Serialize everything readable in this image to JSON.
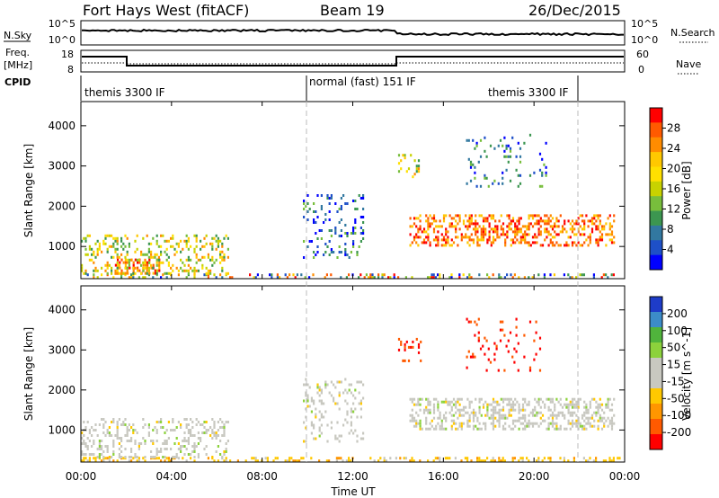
{
  "header": {
    "site": "Fort Hays West (fitACF)",
    "beam": "Beam 19",
    "date": "26/Dec/2015"
  },
  "top_panels": {
    "nsky_label": "N.Sky",
    "nsky_ticks": [
      "10^5",
      "10^0"
    ],
    "nsearch_label": "N.Search",
    "nsearch_ticks": [
      "10^5",
      "10^0"
    ],
    "freq_label": "Freq.",
    "freq_unit": "[MHz]",
    "freq_ticks": [
      "18",
      "8"
    ],
    "nave_label": "Nave",
    "nave_ticks": [
      "60",
      "0"
    ],
    "cpid_label": "CPID",
    "cpid_segments": [
      {
        "label": "themis 3300 IF",
        "start_hr": 0,
        "end_hr": 10
      },
      {
        "label": "normal (fast) 151 IF",
        "start_hr": 10,
        "end_hr": 22
      },
      {
        "label": "themis 3300 IF",
        "start_hr": 22,
        "end_hr": 24
      }
    ]
  },
  "x_axis": {
    "label": "Time UT",
    "ticks": [
      "00:00",
      "04:00",
      "08:00",
      "12:00",
      "16:00",
      "20:00",
      "00:00"
    ]
  },
  "y_axis": {
    "label": "Slant Range [km]",
    "ticks": [
      "1000",
      "2000",
      "3000",
      "4000"
    ]
  },
  "power_colorbar": {
    "label": "Power [dB]",
    "ticks": [
      "28",
      "24",
      "20",
      "16",
      "12",
      "8",
      "4"
    ],
    "colors": [
      "#ff0000",
      "#ff5a00",
      "#ff8c00",
      "#ffc800",
      "#ffe000",
      "#c8d200",
      "#78be3c",
      "#3c9650",
      "#3278a0",
      "#1e50c8",
      "#0000ff"
    ]
  },
  "velocity_colorbar": {
    "label": "Velocity [m s^-1]",
    "ticks": [
      "200",
      "100",
      "50",
      "15",
      "-15",
      "-50",
      "-100",
      "-200"
    ],
    "colors": [
      "#1e3cc8",
      "#3c8cc8",
      "#50b43c",
      "#8cd23c",
      "#c8c8c0",
      "#c8c8c0",
      "#ffc800",
      "#ff9600",
      "#ff5a00",
      "#ff0000"
    ]
  },
  "chart_data": [
    {
      "type": "heatmap",
      "title": "Power",
      "xlabel": "Time UT",
      "ylabel": "Slant Range [km]",
      "xlim": [
        0,
        24
      ],
      "ylim": [
        200,
        4600
      ],
      "clabel": "Power [dB]",
      "features": [
        {
          "t0": 0.0,
          "t1": 24.0,
          "r0": 200,
          "r1": 330,
          "level": "mixed",
          "density": 0.55
        },
        {
          "t0": 1.5,
          "t1": 3.5,
          "r0": 300,
          "r1": 700,
          "level": "high",
          "density": 0.6
        },
        {
          "t0": 0.0,
          "t1": 6.5,
          "r0": 350,
          "r1": 1300,
          "level": "mid",
          "density": 0.5
        },
        {
          "t0": 9.8,
          "t1": 12.5,
          "r0": 700,
          "r1": 2300,
          "level": "low",
          "density": 0.3
        },
        {
          "t0": 14.5,
          "t1": 23.5,
          "r0": 1000,
          "r1": 1800,
          "level": "high",
          "density": 0.7
        },
        {
          "t0": 14.0,
          "t1": 15.0,
          "r0": 2700,
          "r1": 3300,
          "level": "mid",
          "density": 0.3
        },
        {
          "t0": 17.0,
          "t1": 20.5,
          "r0": 2500,
          "r1": 3800,
          "level": "low",
          "density": 0.15
        }
      ]
    },
    {
      "type": "heatmap",
      "title": "Velocity",
      "xlabel": "Time UT",
      "ylabel": "Slant Range [km]",
      "xlim": [
        0,
        24
      ],
      "ylim": [
        200,
        4600
      ],
      "clabel": "Velocity [m s^-1]",
      "features": [
        {
          "t0": 0.0,
          "t1": 24.0,
          "r0": 200,
          "r1": 330,
          "level": "neg-small",
          "density": 0.55
        },
        {
          "t0": 0.0,
          "t1": 6.5,
          "r0": 350,
          "r1": 1300,
          "level": "zero",
          "density": 0.5
        },
        {
          "t0": 9.8,
          "t1": 12.5,
          "r0": 700,
          "r1": 2300,
          "level": "zero",
          "density": 0.3
        },
        {
          "t0": 14.5,
          "t1": 23.5,
          "r0": 1000,
          "r1": 1800,
          "level": "zero",
          "density": 0.75
        },
        {
          "t0": 14.0,
          "t1": 15.0,
          "r0": 2700,
          "r1": 3300,
          "level": "neg-large",
          "density": 0.35
        },
        {
          "t0": 17.0,
          "t1": 20.5,
          "r0": 2500,
          "r1": 3800,
          "level": "neg-large",
          "density": 0.12
        }
      ]
    }
  ]
}
